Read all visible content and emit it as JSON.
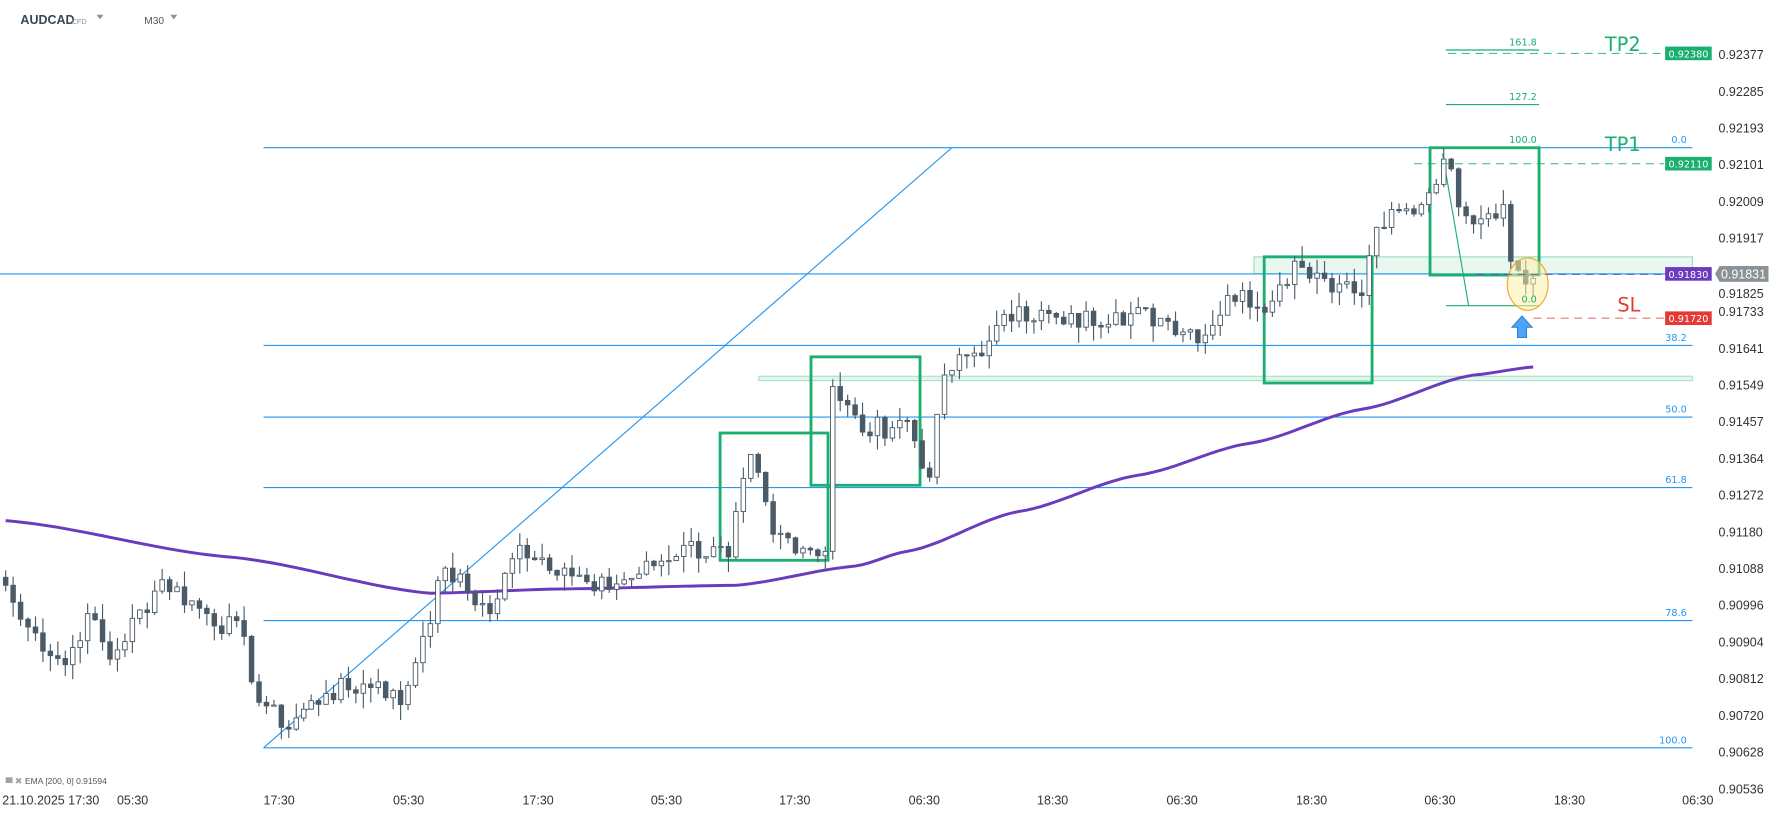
{
  "header": {
    "symbol": "AUDCAD",
    "instrument_type": "CFD",
    "timeframe": "M30"
  },
  "indicator_label": "EMA [200, 0] 0.91594",
  "price_axis": [
    "0.92377",
    "0.92285",
    "0.92193",
    "0.92101",
    "0.92009",
    "0.91917",
    "0.91825",
    "0.91733",
    "0.91641",
    "0.91549",
    "0.91457",
    "0.91364",
    "0.91272",
    "0.91180",
    "0.91088",
    "0.90996",
    "0.90904",
    "0.90812",
    "0.90720",
    "0.90628",
    "0.90536"
  ],
  "time_axis": [
    "21.10.2025",
    "17:30",
    "05:30",
    "17:30",
    "05:30",
    "17:30",
    "05:30",
    "17:30",
    "06:30",
    "18:30",
    "06:30",
    "18:30",
    "06:30",
    "18:30",
    "06:30"
  ],
  "tags": {
    "tp2": "0.92380",
    "tp1": "0.92110",
    "entry": "0.91830",
    "sl": "0.91720",
    "last": "0.91831"
  },
  "annotations": {
    "tp2": "TP2",
    "tp1": "TP1",
    "sl": "SL"
  },
  "fib_retracement": [
    "0.0",
    "38.2",
    "50.0",
    "61.8",
    "78.6",
    "100.0"
  ],
  "fib_extension": [
    "161.8",
    "127.2",
    "100.0",
    "0.0"
  ],
  "colors": {
    "bull_body": "#ffffff",
    "bear_body": "#4a5a66",
    "ema": "#6a3bbf",
    "fib": "#2196f3",
    "zone": "#1aae6f",
    "tp": "#1aae6f",
    "sl": "#e53935",
    "entry": "#6a3bbf",
    "last": "#8a9296"
  },
  "chart_data": {
    "type": "candlestick",
    "symbol": "AUDCAD",
    "timeframe": "M30",
    "ylim": [
      0.90536,
      0.9242
    ],
    "closes": [
      [
        0,
        0.91047
      ],
      [
        2,
        0.90962
      ],
      [
        8,
        0.90848
      ],
      [
        11,
        0.90976
      ],
      [
        14,
        0.90862
      ],
      [
        21,
        0.91061
      ],
      [
        27,
        0.90976
      ],
      [
        32,
        0.90919
      ],
      [
        33,
        0.90805
      ],
      [
        37,
        0.90691
      ],
      [
        43,
        0.90776
      ],
      [
        50,
        0.90805
      ],
      [
        53,
        0.90748
      ],
      [
        56,
        0.90919
      ],
      [
        59,
        0.9109
      ],
      [
        65,
        0.90976
      ],
      [
        69,
        0.91147
      ],
      [
        75,
        0.9109
      ],
      [
        79,
        0.91033
      ],
      [
        85,
        0.91075
      ],
      [
        91,
        0.91147
      ],
      [
        97,
        0.91118
      ],
      [
        100,
        0.91375
      ],
      [
        103,
        0.91175
      ],
      [
        110,
        0.91132
      ],
      [
        111,
        0.91545
      ],
      [
        115,
        0.91431
      ],
      [
        121,
        0.9146
      ],
      [
        124,
        0.91318
      ],
      [
        126,
        0.91574
      ],
      [
        132,
        0.91659
      ],
      [
        136,
        0.91745
      ],
      [
        142,
        0.91702
      ],
      [
        149,
        0.9173
      ],
      [
        155,
        0.91716
      ],
      [
        161,
        0.91674
      ],
      [
        164,
        0.91773
      ],
      [
        170,
        0.91759
      ],
      [
        173,
        0.91859
      ],
      [
        179,
        0.91802
      ],
      [
        182,
        0.91773
      ],
      [
        184,
        0.91944
      ],
      [
        190,
        0.92001
      ],
      [
        193,
        0.92115
      ],
      [
        196,
        0.91973
      ],
      [
        201,
        0.92001
      ],
      [
        202,
        0.91859
      ],
      [
        204,
        0.91802
      ],
      [
        205,
        0.91816
      ]
    ],
    "ema200": [
      [
        0,
        0.91209
      ],
      [
        30,
        0.91118
      ],
      [
        57,
        0.91027
      ],
      [
        75,
        0.91038
      ],
      [
        98,
        0.91047
      ],
      [
        114,
        0.91095
      ],
      [
        121,
        0.91132
      ],
      [
        136,
        0.91232
      ],
      [
        152,
        0.91323
      ],
      [
        167,
        0.91403
      ],
      [
        182,
        0.91488
      ],
      [
        197,
        0.91574
      ],
      [
        205,
        0.91594
      ]
    ],
    "levels": {
      "tp2": 0.9238,
      "tp1": 0.9211,
      "entry": 0.9183,
      "sl": 0.9172,
      "last": 0.91831
    }
  }
}
